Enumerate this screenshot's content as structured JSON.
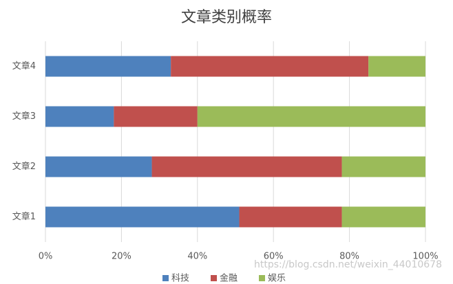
{
  "chart_data": {
    "type": "stacked-barh",
    "title": "文章类别概率",
    "categories": [
      "文章1",
      "文章2",
      "文章3",
      "文章4"
    ],
    "series": [
      {
        "name": "科技",
        "color": "#4e81bd",
        "values": [
          51,
          28,
          18,
          33
        ]
      },
      {
        "name": "金融",
        "color": "#c0504d",
        "values": [
          27,
          50,
          22,
          52
        ]
      },
      {
        "name": "娱乐",
        "color": "#9bbb59",
        "values": [
          22,
          22,
          60,
          15
        ]
      }
    ],
    "xlim": [
      0,
      100
    ],
    "xticks": [
      {
        "value": 0,
        "label": "0%"
      },
      {
        "value": 20,
        "label": "20%"
      },
      {
        "value": 40,
        "label": "40%"
      },
      {
        "value": 60,
        "label": "60%"
      },
      {
        "value": 80,
        "label": "80%"
      },
      {
        "value": 100,
        "label": "100%"
      }
    ],
    "grid": true,
    "legend": "bottom",
    "watermark": "https://blog.csdn.net/weixin_44010678"
  }
}
